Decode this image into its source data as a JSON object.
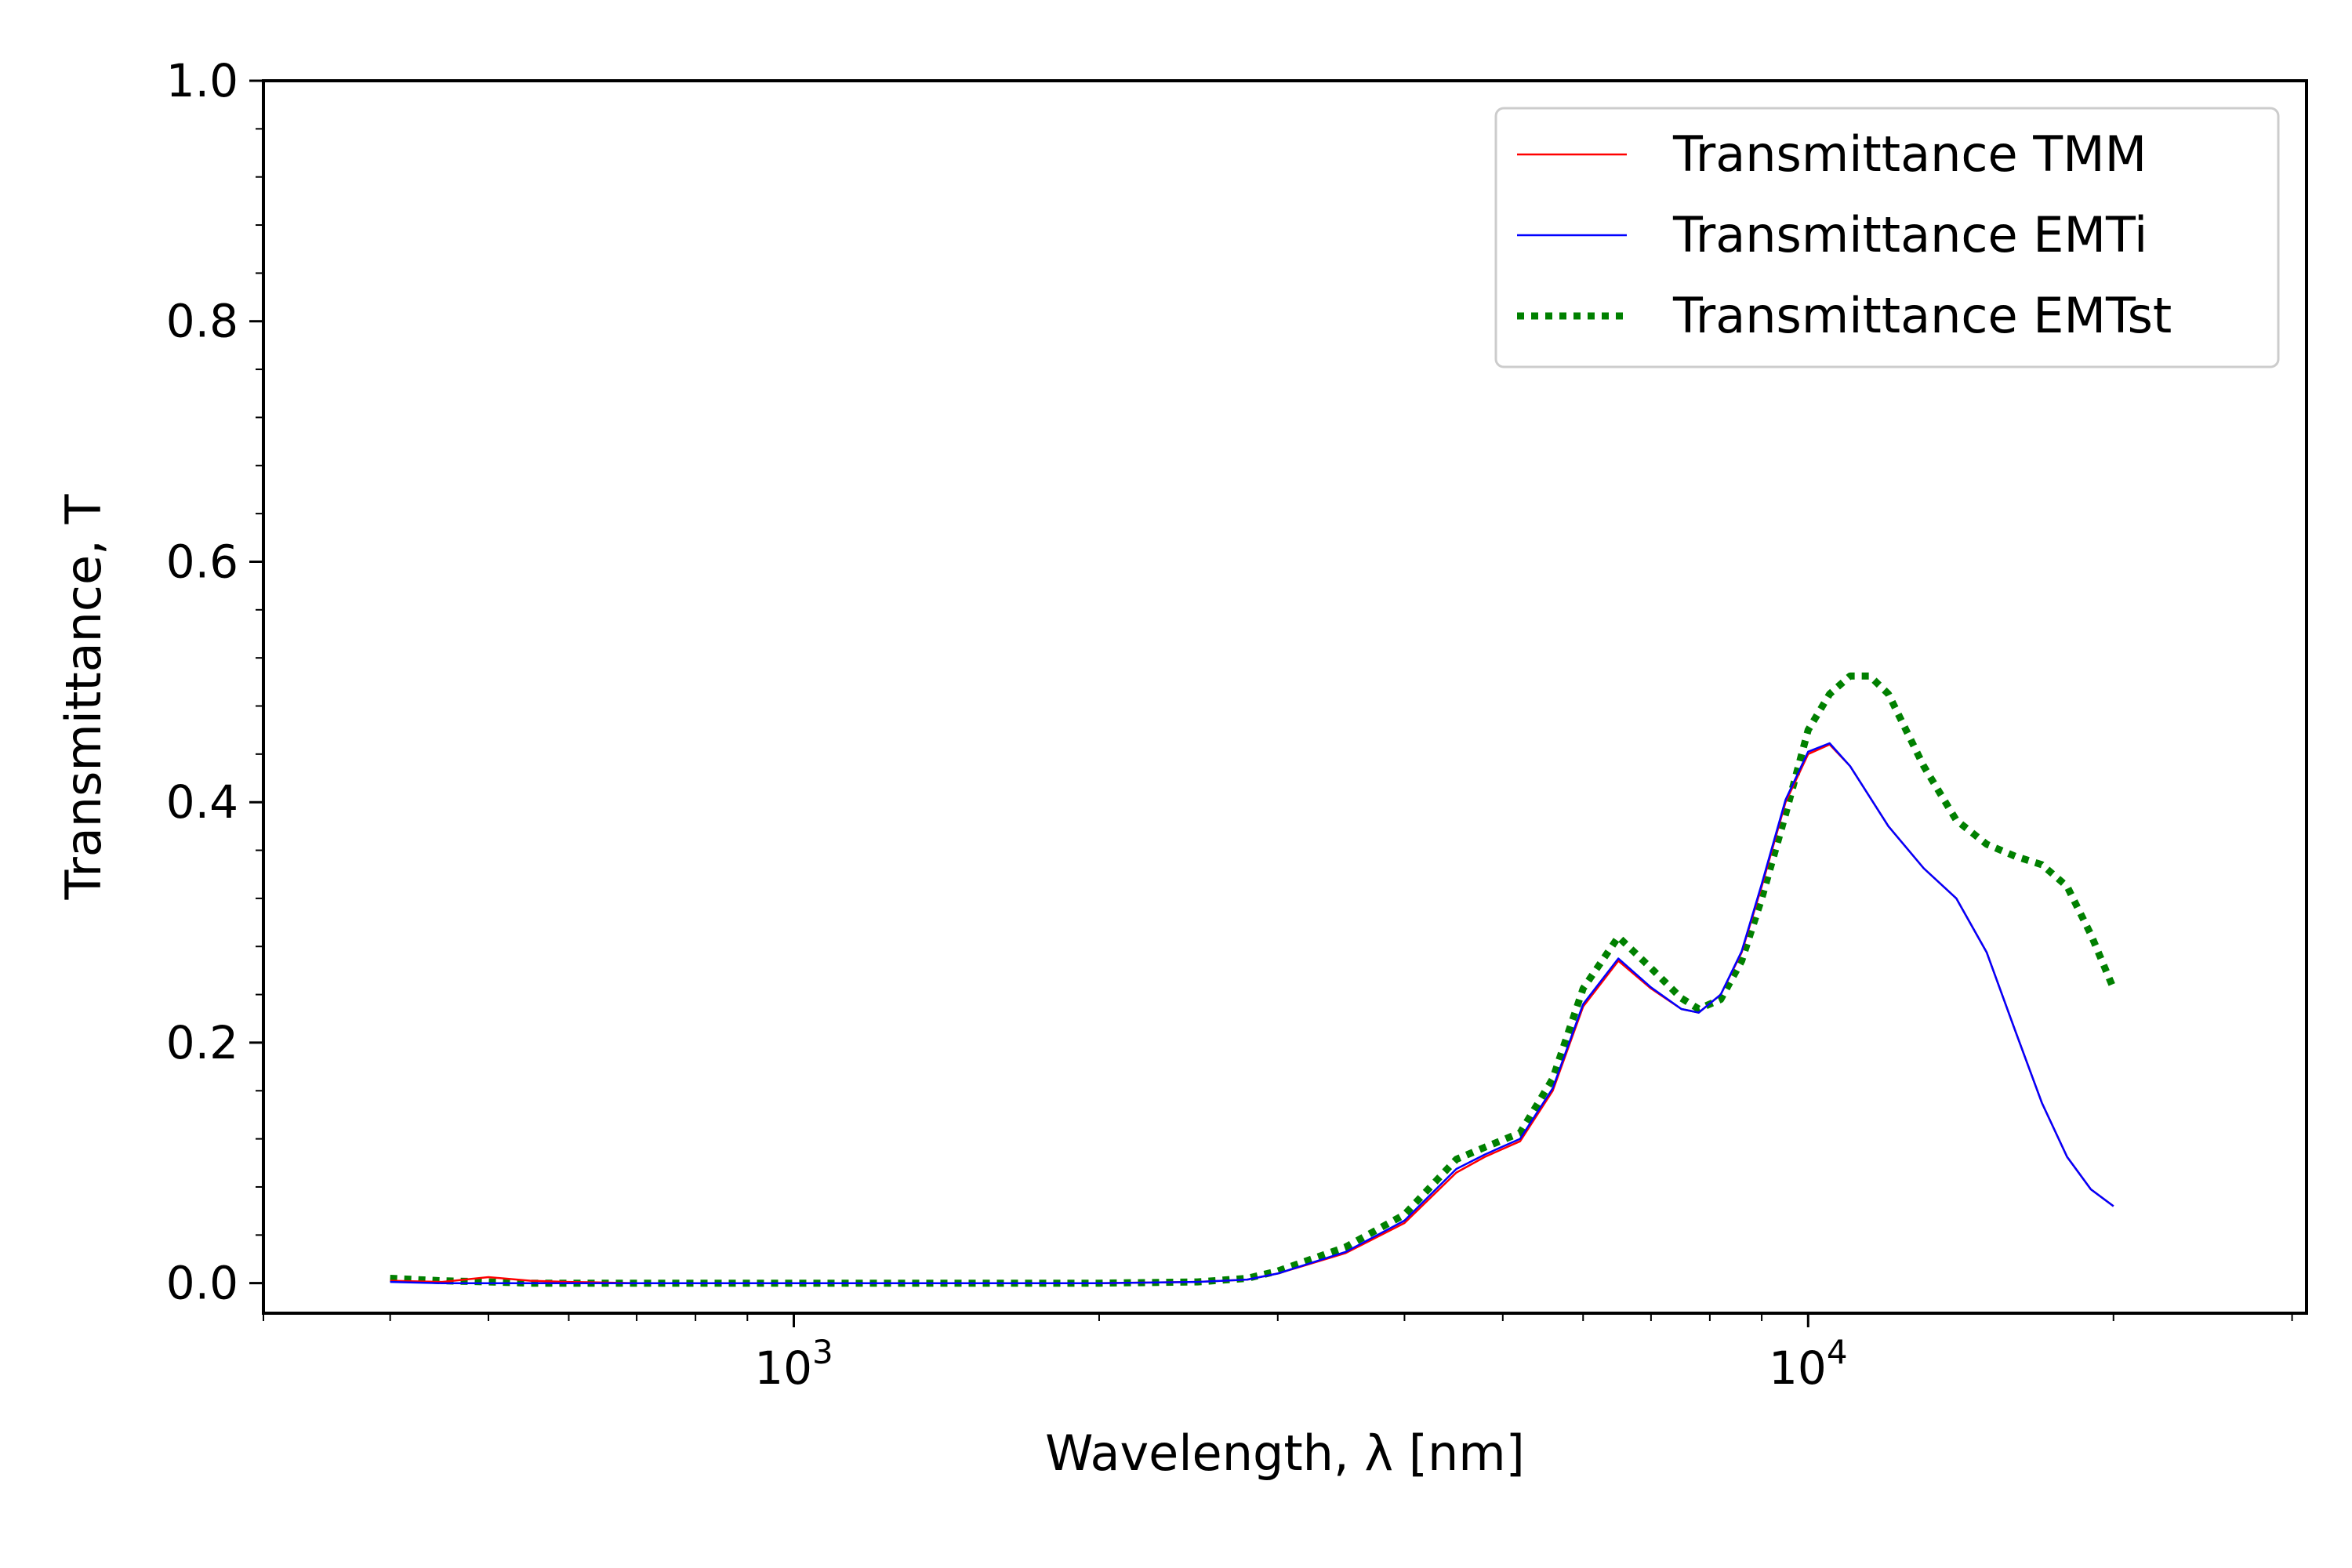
{
  "chart_data": {
    "type": "line",
    "title": "",
    "xlabel": "Wavelength, λ [nm]",
    "ylabel": "Transmittance, T",
    "xscale": "log",
    "xlim": [
      300,
      31000
    ],
    "ylim": [
      -0.025,
      1.0
    ],
    "xticks": [
      {
        "value": 1000,
        "base": "10",
        "exp": "3"
      },
      {
        "value": 10000,
        "base": "10",
        "exp": "4"
      }
    ],
    "yticks": [
      {
        "value": 0.0,
        "label": "0.0"
      },
      {
        "value": 0.2,
        "label": "0.2"
      },
      {
        "value": 0.4,
        "label": "0.4"
      },
      {
        "value": 0.6,
        "label": "0.6"
      },
      {
        "value": 0.8,
        "label": "0.8"
      },
      {
        "value": 1.0,
        "label": "1.0"
      }
    ],
    "legend_position": "top-right",
    "series": [
      {
        "name": "Transmittance TMM",
        "color": "#ff0000",
        "style": "solid",
        "x": [
          400,
          450,
          500,
          550,
          600,
          700,
          800,
          1000,
          1500,
          2000,
          2500,
          2800,
          3000,
          3500,
          4000,
          4500,
          4800,
          5200,
          5600,
          6000,
          6500,
          7000,
          7500,
          7800,
          8200,
          8600,
          9000,
          9500,
          10000,
          10500,
          11000,
          12000,
          13000,
          14000,
          15000,
          16000,
          17000,
          18000,
          19000,
          20000
        ],
        "y": [
          0.002,
          0.001,
          0.005,
          0.002,
          0.001,
          0.0,
          0.0,
          0.0,
          0.0,
          0.0,
          0.001,
          0.003,
          0.008,
          0.025,
          0.05,
          0.092,
          0.105,
          0.118,
          0.16,
          0.23,
          0.268,
          0.245,
          0.228,
          0.225,
          0.24,
          0.275,
          0.33,
          0.4,
          0.44,
          0.448,
          0.43,
          0.38,
          0.345,
          0.32,
          0.275,
          0.21,
          0.15,
          0.105,
          0.078,
          0.064
        ]
      },
      {
        "name": "Transmittance EMTi",
        "color": "#0000ff",
        "style": "solid",
        "x": [
          400,
          450,
          500,
          550,
          600,
          700,
          800,
          1000,
          1500,
          2000,
          2500,
          2800,
          3000,
          3500,
          4000,
          4500,
          4800,
          5200,
          5600,
          6000,
          6500,
          7000,
          7500,
          7800,
          8200,
          8600,
          9000,
          9500,
          10000,
          10500,
          11000,
          12000,
          13000,
          14000,
          15000,
          16000,
          17000,
          18000,
          19000,
          20000
        ],
        "y": [
          0.001,
          0.0,
          0.0,
          0.0,
          0.0,
          0.0,
          0.0,
          0.0,
          0.0,
          0.0,
          0.001,
          0.003,
          0.008,
          0.026,
          0.052,
          0.095,
          0.107,
          0.12,
          0.162,
          0.232,
          0.27,
          0.246,
          0.228,
          0.225,
          0.24,
          0.276,
          0.332,
          0.402,
          0.442,
          0.449,
          0.43,
          0.38,
          0.345,
          0.32,
          0.275,
          0.21,
          0.15,
          0.105,
          0.078,
          0.064
        ]
      },
      {
        "name": "Transmittance EMTst",
        "color": "#008000",
        "style": "dotted",
        "x": [
          400,
          450,
          500,
          550,
          600,
          700,
          800,
          1000,
          1500,
          2000,
          2500,
          2800,
          3000,
          3500,
          4000,
          4500,
          4800,
          5200,
          5600,
          6000,
          6500,
          7000,
          7500,
          7800,
          8200,
          8600,
          9000,
          9500,
          10000,
          10500,
          11000,
          11500,
          12000,
          13000,
          14000,
          15000,
          16000,
          17000,
          18000,
          19000,
          20000
        ],
        "y": [
          0.004,
          0.002,
          0.001,
          0.0,
          0.0,
          0.0,
          0.0,
          0.0,
          0.0,
          0.0,
          0.001,
          0.004,
          0.01,
          0.03,
          0.057,
          0.103,
          0.113,
          0.125,
          0.17,
          0.245,
          0.288,
          0.262,
          0.237,
          0.228,
          0.236,
          0.268,
          0.32,
          0.39,
          0.46,
          0.49,
          0.505,
          0.505,
          0.49,
          0.43,
          0.385,
          0.365,
          0.355,
          0.348,
          0.33,
          0.29,
          0.245
        ]
      }
    ]
  }
}
